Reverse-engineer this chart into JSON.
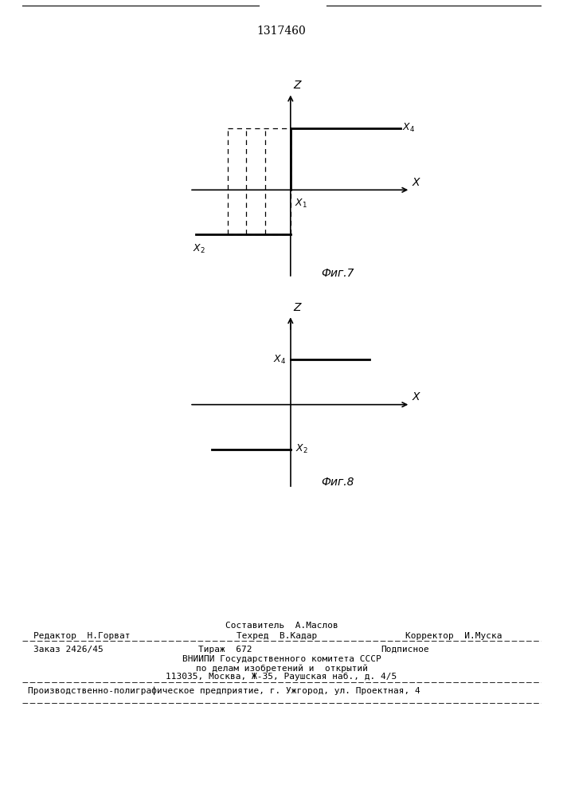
{
  "title": "1317460",
  "title_fontsize": 10,
  "fig7_caption": "Фиг.7",
  "fig8_caption": "Фиг.8",
  "footer_editor": "Редактор  Н.Горват",
  "footer_compiler": "Составитель  А.Маслов",
  "footer_techred": "Техред  В.Кадар",
  "footer_corrector": "Корректор  И.Муска",
  "footer_order": "Заказ 2426/45",
  "footer_tirazh": "Тираж  672",
  "footer_podpisnoe": "Подписное",
  "footer_vniip1": "ВНИИПИ Государственного комитета СССР",
  "footer_vniip2": "по делам изобретений и  открытий",
  "footer_vniip3": "113035, Москва, Ж-35, Раушская наб., д. 4/5",
  "footer_prod": "Производственно-полиграфическое предприятие, г. Ужгород, ул. Проектная, 4"
}
